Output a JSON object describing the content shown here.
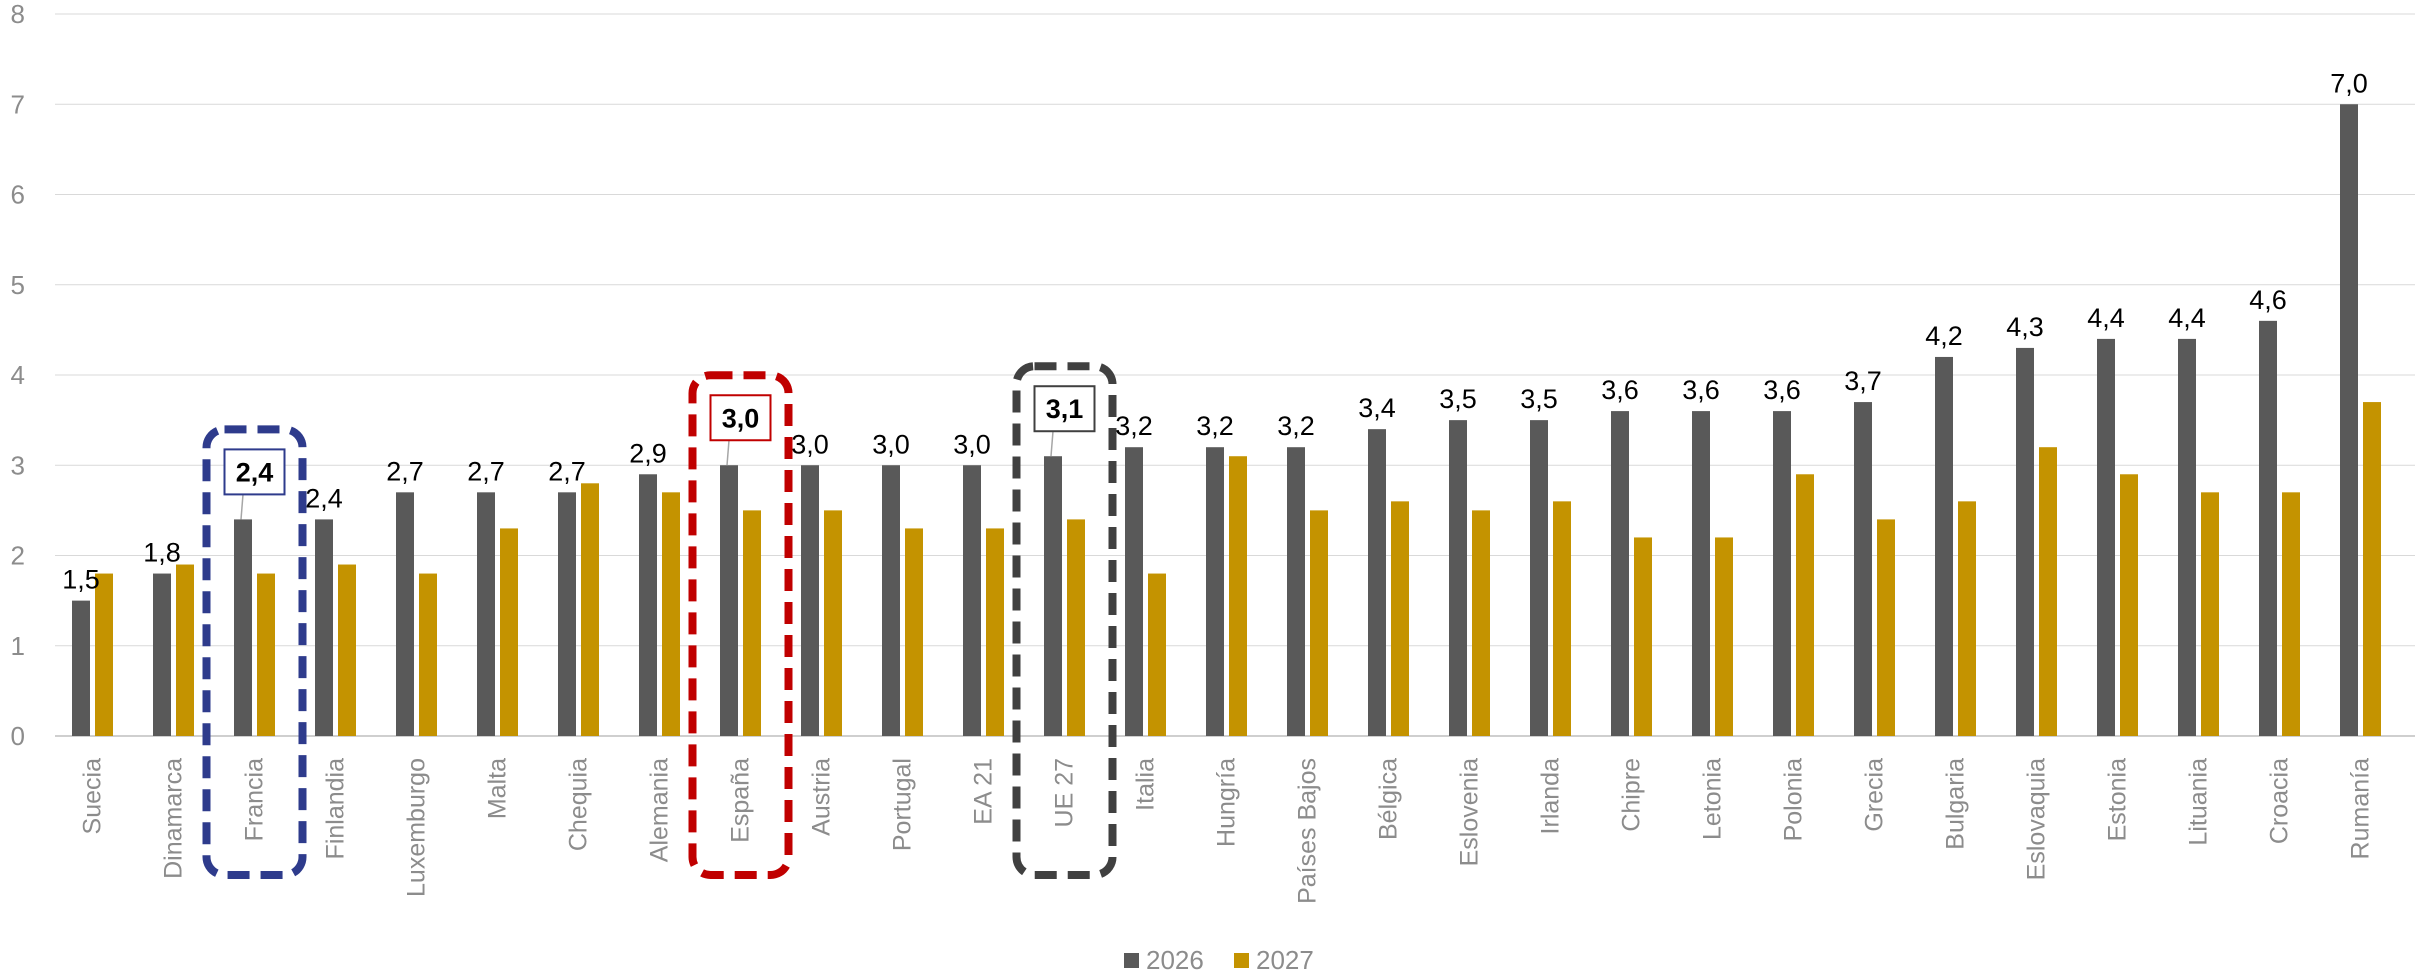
{
  "chart_data": {
    "type": "bar",
    "ylim": [
      0,
      8
    ],
    "yticks": [
      "0",
      "1",
      "2",
      "3",
      "4",
      "5",
      "6",
      "7",
      "8"
    ],
    "grid": true,
    "legend_position": "bottom",
    "categories": [
      "Suecia",
      "Dinamarca",
      "Francia",
      "Finlandia",
      "Luxemburgo",
      "Malta",
      "Chequia",
      "Alemania",
      "España",
      "Austria",
      "Portugal",
      "EA 21",
      "UE 27",
      "Italia",
      "Hungría",
      "Países Bajos",
      "Bélgica",
      "Eslovenia",
      "Irlanda",
      "Chipre",
      "Letonia",
      "Polonia",
      "Grecia",
      "Bulgaria",
      "Eslovaquia",
      "Estonia",
      "Lituania",
      "Croacia",
      "Rumanía"
    ],
    "series": [
      {
        "name": "2026",
        "color": "#595959",
        "values": [
          1.5,
          1.8,
          2.4,
          2.4,
          2.7,
          2.7,
          2.7,
          2.9,
          3.0,
          3.0,
          3.0,
          3.0,
          3.1,
          3.2,
          3.2,
          3.2,
          3.4,
          3.5,
          3.5,
          3.6,
          3.6,
          3.6,
          3.7,
          4.2,
          4.3,
          4.4,
          4.4,
          4.6,
          7.0
        ],
        "labels": [
          "1,5",
          "1,8",
          "2,4",
          "2,4",
          "2,7",
          "2,7",
          "2,7",
          "2,9",
          "3,0",
          "3,0",
          "3,0",
          "3,0",
          "3,1",
          "3,2",
          "3,2",
          "3,2",
          "3,4",
          "3,5",
          "3,5",
          "3,6",
          "3,6",
          "3,6",
          "3,7",
          "4,2",
          "4,3",
          "4,4",
          "4,4",
          "4,6",
          "7,0"
        ]
      },
      {
        "name": "2027",
        "color": "#c49300",
        "values": [
          1.8,
          1.9,
          1.8,
          1.9,
          1.8,
          2.3,
          2.8,
          2.7,
          2.5,
          2.5,
          2.3,
          2.3,
          2.4,
          1.8,
          3.1,
          2.5,
          2.6,
          2.5,
          2.6,
          2.2,
          2.2,
          2.9,
          2.4,
          2.6,
          3.2,
          2.9,
          2.7,
          2.7,
          3.7
        ]
      }
    ],
    "highlights": [
      {
        "category": "Francia",
        "color": "#2e3b8c"
      },
      {
        "category": "España",
        "color": "#c00000"
      },
      {
        "category": "UE 27",
        "color": "#404040"
      }
    ]
  }
}
